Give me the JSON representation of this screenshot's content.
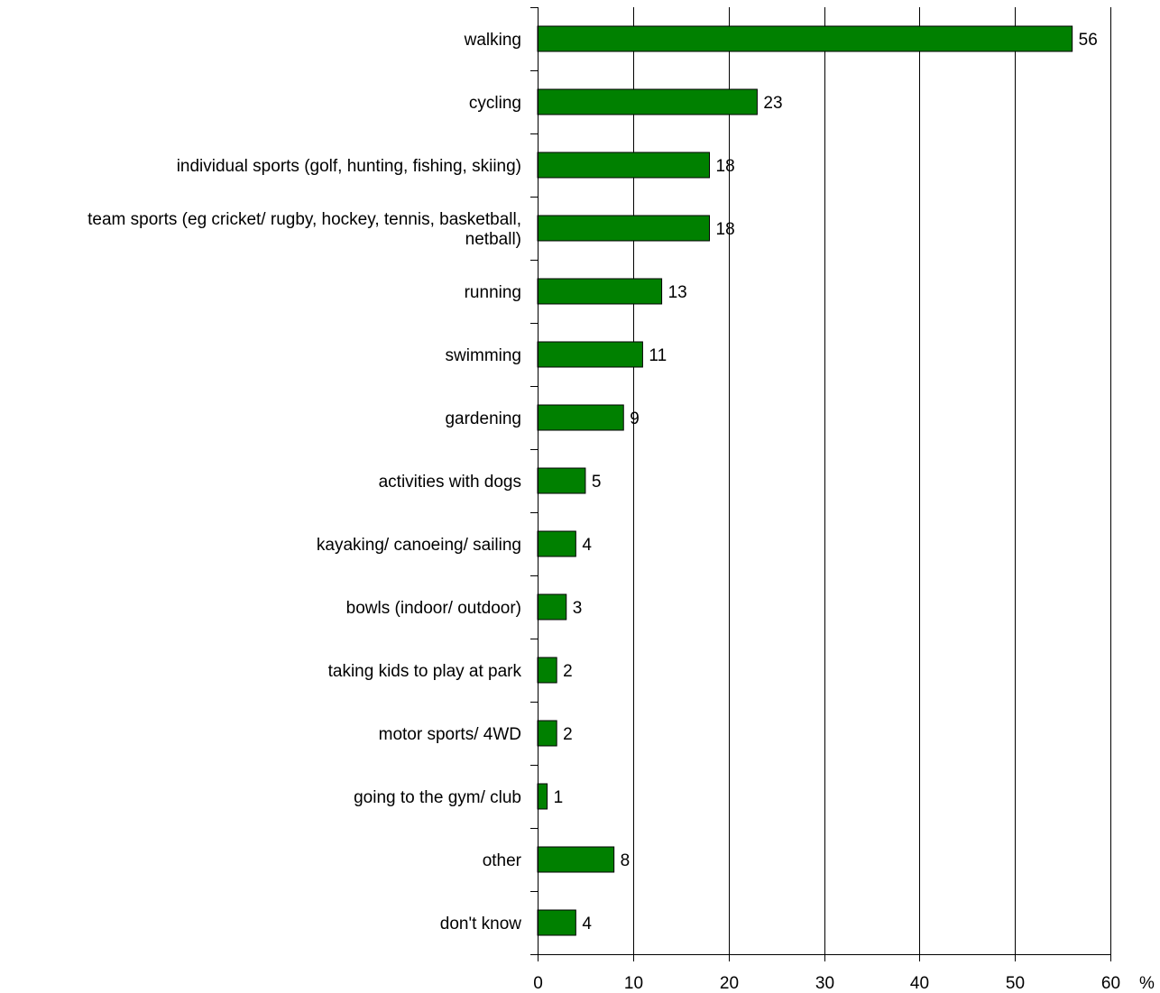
{
  "chart_data": {
    "type": "bar",
    "orientation": "horizontal",
    "categories": [
      "walking",
      "cycling",
      "individual sports (golf, hunting, fishing, skiing)",
      "team sports (eg cricket/ rugby, hockey, tennis, basketball, netball)",
      "running",
      "swimming",
      "gardening",
      "activities with dogs",
      "kayaking/ canoeing/ sailing",
      "bowls (indoor/ outdoor)",
      "taking kids to play at park",
      "motor sports/ 4WD",
      "going to the gym/ club",
      "other",
      "don't know"
    ],
    "category_lines": [
      [
        "walking"
      ],
      [
        "cycling"
      ],
      [
        "individual sports (golf, hunting, fishing, skiing)"
      ],
      [
        "team sports (eg cricket/ rugby, hockey, tennis, basketball,",
        "netball)"
      ],
      [
        "running"
      ],
      [
        "swimming"
      ],
      [
        "gardening"
      ],
      [
        "activities with dogs"
      ],
      [
        "kayaking/ canoeing/ sailing"
      ],
      [
        "bowls (indoor/ outdoor)"
      ],
      [
        "taking kids to play at park"
      ],
      [
        "motor sports/ 4WD"
      ],
      [
        "going to the gym/ club"
      ],
      [
        "other"
      ],
      [
        "don't know"
      ]
    ],
    "values": [
      56,
      23,
      18,
      18,
      13,
      11,
      9,
      5,
      4,
      3,
      2,
      2,
      1,
      8,
      4
    ],
    "data_labels": [
      "56",
      "23",
      "18",
      "18",
      "13",
      "11",
      "9",
      "5",
      "4",
      "3",
      "2",
      "2",
      "1",
      "8",
      "4"
    ],
    "xlim": [
      0,
      60
    ],
    "x_ticks": [
      0,
      10,
      20,
      30,
      40,
      50,
      60
    ],
    "x_tick_labels": [
      "0",
      "10",
      "20",
      "30",
      "40",
      "50",
      "60"
    ],
    "x_unit": "%",
    "grid": "vertical",
    "bar_color": "#008000",
    "bar_edge_color": "#000000",
    "title": "",
    "xlabel": "",
    "ylabel": ""
  }
}
